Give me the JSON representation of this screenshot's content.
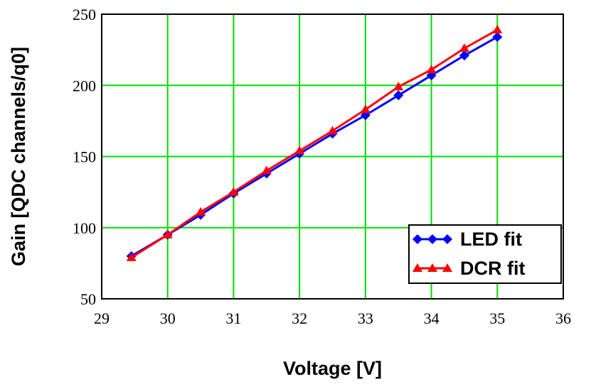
{
  "chart_data": {
    "type": "line",
    "title": "",
    "xlabel": "Voltage [V]",
    "ylabel": "Gain [QDC channels/q0]",
    "xlim": [
      29,
      36
    ],
    "ylim": [
      50,
      250
    ],
    "xticks": [
      29,
      30,
      31,
      32,
      33,
      34,
      35,
      36
    ],
    "yticks": [
      50,
      100,
      150,
      200,
      250
    ],
    "grid": true,
    "legend_position": "bottom-right",
    "series": [
      {
        "name": "LED fit",
        "color": "#0000ff",
        "marker": "diamond",
        "x": [
          29.45,
          30.0,
          30.5,
          31.0,
          31.5,
          32.0,
          32.5,
          33.0,
          33.5,
          34.0,
          34.5,
          35.0
        ],
        "y": [
          80,
          95,
          109,
          124,
          138,
          152,
          166,
          179,
          193,
          207,
          221,
          234
        ]
      },
      {
        "name": "DCR fit",
        "color": "#ff0000",
        "marker": "triangle",
        "x": [
          29.45,
          30.0,
          30.5,
          31.0,
          31.5,
          32.0,
          32.5,
          33.0,
          33.5,
          34.0,
          34.5,
          35.0
        ],
        "y": [
          79,
          95,
          111,
          125,
          140,
          154,
          168,
          183,
          199,
          211,
          226,
          239
        ]
      }
    ]
  }
}
